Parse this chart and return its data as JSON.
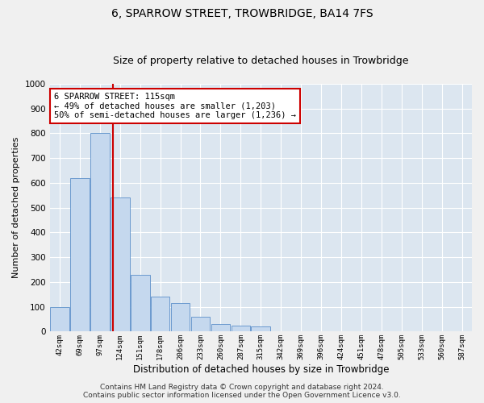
{
  "title": "6, SPARROW STREET, TROWBRIDGE, BA14 7FS",
  "subtitle": "Size of property relative to detached houses in Trowbridge",
  "xlabel": "Distribution of detached houses by size in Trowbridge",
  "ylabel": "Number of detached properties",
  "bar_color": "#c5d8ee",
  "bar_edge_color": "#5b8fc9",
  "background_color": "#dce6f0",
  "grid_color": "#ffffff",
  "fig_background": "#f0f0f0",
  "bin_labels": [
    "42sqm",
    "69sqm",
    "97sqm",
    "124sqm",
    "151sqm",
    "178sqm",
    "206sqm",
    "233sqm",
    "260sqm",
    "287sqm",
    "315sqm",
    "342sqm",
    "369sqm",
    "396sqm",
    "424sqm",
    "451sqm",
    "478sqm",
    "505sqm",
    "533sqm",
    "560sqm",
    "587sqm"
  ],
  "bar_values": [
    100,
    620,
    800,
    540,
    230,
    140,
    115,
    60,
    30,
    25,
    20,
    0,
    0,
    0,
    0,
    0,
    0,
    0,
    0,
    0,
    0
  ],
  "ylim": [
    0,
    1000
  ],
  "yticks": [
    0,
    100,
    200,
    300,
    400,
    500,
    600,
    700,
    800,
    900,
    1000
  ],
  "vline_x": 2.65,
  "vline_color": "#cc0000",
  "annotation_text": "6 SPARROW STREET: 115sqm\n← 49% of detached houses are smaller (1,203)\n50% of semi-detached houses are larger (1,236) →",
  "annotation_box_color": "#ffffff",
  "annotation_box_edge": "#cc0000",
  "footer_text": "Contains HM Land Registry data © Crown copyright and database right 2024.\nContains public sector information licensed under the Open Government Licence v3.0.",
  "title_fontsize": 10,
  "subtitle_fontsize": 9,
  "xlabel_fontsize": 8.5,
  "ylabel_fontsize": 8,
  "annotation_fontsize": 7.5,
  "footer_fontsize": 6.5
}
